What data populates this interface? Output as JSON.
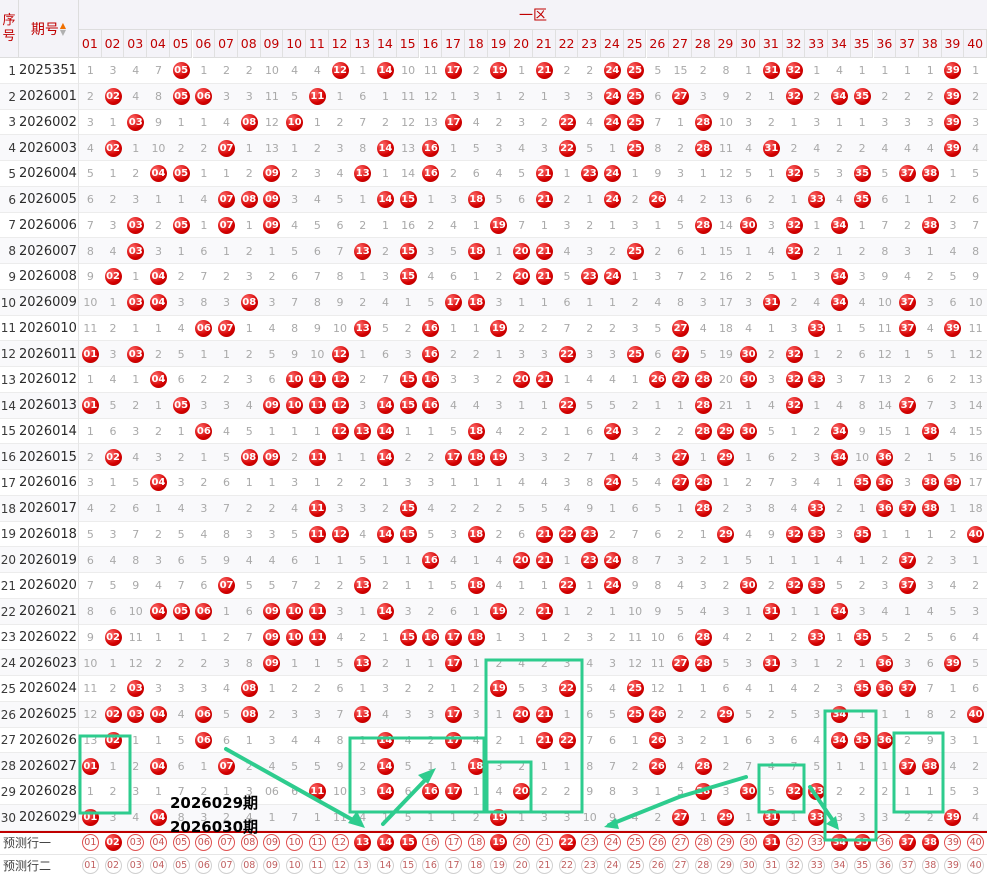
{
  "header": {
    "seq_label": "序号",
    "period_label": "期号",
    "zone_label": "一区",
    "sort_icon": "sort-arrows-icon"
  },
  "columns": [
    "01",
    "02",
    "03",
    "04",
    "05",
    "06",
    "07",
    "08",
    "09",
    "10",
    "11",
    "12",
    "13",
    "14",
    "15",
    "16",
    "17",
    "18",
    "19",
    "20",
    "21",
    "22",
    "23",
    "24",
    "25",
    "26",
    "27",
    "28",
    "29",
    "30",
    "31",
    "32",
    "33",
    "34",
    "35",
    "36",
    "37",
    "38",
    "39",
    "40"
  ],
  "rows": [
    {
      "i": "1",
      "p": "2025351",
      "v": [
        "1",
        "3",
        "4",
        "7",
        "05",
        "1",
        "2",
        "2",
        "10",
        "4",
        "4",
        "12",
        "1",
        "14",
        "10",
        "11",
        "17",
        "2",
        "19",
        "1",
        "21",
        "2",
        "2",
        "24",
        "25",
        "5",
        "15",
        "2",
        "8",
        "1",
        "31",
        "32",
        "1",
        "4",
        "1",
        "1",
        "1",
        "1",
        "39",
        "1"
      ]
    },
    {
      "i": "2",
      "p": "2026001",
      "v": [
        "2",
        "02",
        "4",
        "8",
        "05",
        "06",
        "3",
        "3",
        "11",
        "5",
        "11",
        "1",
        "6",
        "1",
        "11",
        "12",
        "1",
        "3",
        "1",
        "2",
        "1",
        "3",
        "3",
        "24",
        "25",
        "6",
        "27",
        "3",
        "9",
        "2",
        "1",
        "32",
        "2",
        "34",
        "35",
        "2",
        "2",
        "2",
        "39",
        "2"
      ]
    },
    {
      "i": "3",
      "p": "2026002",
      "v": [
        "3",
        "1",
        "03",
        "9",
        "1",
        "1",
        "4",
        "08",
        "12",
        "10",
        "1",
        "2",
        "7",
        "2",
        "12",
        "13",
        "17",
        "4",
        "2",
        "3",
        "2",
        "22",
        "4",
        "24",
        "25",
        "7",
        "1",
        "28",
        "10",
        "3",
        "2",
        "1",
        "3",
        "1",
        "1",
        "3",
        "3",
        "3",
        "39",
        "3"
      ]
    },
    {
      "i": "4",
      "p": "2026003",
      "v": [
        "4",
        "02",
        "1",
        "10",
        "2",
        "2",
        "07",
        "1",
        "13",
        "1",
        "2",
        "3",
        "8",
        "14",
        "13",
        "16",
        "1",
        "5",
        "3",
        "4",
        "3",
        "22",
        "5",
        "1",
        "25",
        "8",
        "2",
        "28",
        "11",
        "4",
        "31",
        "2",
        "4",
        "2",
        "2",
        "4",
        "4",
        "4",
        "39",
        "4"
      ]
    },
    {
      "i": "5",
      "p": "2026004",
      "v": [
        "5",
        "1",
        "2",
        "04",
        "05",
        "1",
        "1",
        "2",
        "09",
        "2",
        "3",
        "4",
        "13",
        "1",
        "14",
        "16",
        "2",
        "6",
        "4",
        "5",
        "21",
        "1",
        "23",
        "24",
        "1",
        "9",
        "3",
        "1",
        "12",
        "5",
        "1",
        "32",
        "5",
        "3",
        "35",
        "5",
        "37",
        "38",
        "1",
        "5"
      ]
    },
    {
      "i": "6",
      "p": "2026005",
      "v": [
        "6",
        "2",
        "3",
        "1",
        "1",
        "4",
        "07",
        "08",
        "09",
        "3",
        "4",
        "5",
        "1",
        "14",
        "15",
        "1",
        "3",
        "18",
        "5",
        "6",
        "21",
        "2",
        "1",
        "24",
        "2",
        "26",
        "4",
        "2",
        "13",
        "6",
        "2",
        "1",
        "33",
        "4",
        "35",
        "6",
        "1",
        "1",
        "2",
        "6"
      ]
    },
    {
      "i": "7",
      "p": "2026006",
      "v": [
        "7",
        "3",
        "03",
        "2",
        "05",
        "1",
        "07",
        "1",
        "09",
        "4",
        "5",
        "6",
        "2",
        "1",
        "16",
        "2",
        "4",
        "1",
        "19",
        "7",
        "1",
        "3",
        "2",
        "1",
        "3",
        "1",
        "5",
        "28",
        "14",
        "30",
        "3",
        "32",
        "1",
        "34",
        "1",
        "7",
        "2",
        "38",
        "3",
        "7"
      ]
    },
    {
      "i": "8",
      "p": "2026007",
      "v": [
        "8",
        "4",
        "03",
        "3",
        "1",
        "6",
        "1",
        "2",
        "1",
        "5",
        "6",
        "7",
        "13",
        "2",
        "15",
        "3",
        "5",
        "18",
        "1",
        "20",
        "21",
        "4",
        "3",
        "2",
        "25",
        "2",
        "6",
        "1",
        "15",
        "1",
        "4",
        "32",
        "2",
        "1",
        "2",
        "8",
        "3",
        "1",
        "4",
        "8"
      ]
    },
    {
      "i": "9",
      "p": "2026008",
      "v": [
        "9",
        "02",
        "1",
        "04",
        "2",
        "7",
        "2",
        "3",
        "2",
        "6",
        "7",
        "8",
        "1",
        "3",
        "15",
        "4",
        "6",
        "1",
        "2",
        "20",
        "21",
        "5",
        "23",
        "24",
        "1",
        "3",
        "7",
        "2",
        "16",
        "2",
        "5",
        "1",
        "3",
        "34",
        "3",
        "9",
        "4",
        "2",
        "5",
        "9"
      ]
    },
    {
      "i": "10",
      "p": "2026009",
      "v": [
        "10",
        "1",
        "03",
        "04",
        "3",
        "8",
        "3",
        "08",
        "3",
        "7",
        "8",
        "9",
        "2",
        "4",
        "1",
        "5",
        "17",
        "18",
        "3",
        "1",
        "1",
        "6",
        "1",
        "1",
        "2",
        "4",
        "8",
        "3",
        "17",
        "3",
        "31",
        "2",
        "4",
        "34",
        "4",
        "10",
        "37",
        "3",
        "6",
        "10"
      ]
    },
    {
      "i": "11",
      "p": "2026010",
      "v": [
        "11",
        "2",
        "1",
        "1",
        "4",
        "06",
        "07",
        "1",
        "4",
        "8",
        "9",
        "10",
        "13",
        "5",
        "2",
        "16",
        "1",
        "1",
        "19",
        "2",
        "2",
        "7",
        "2",
        "2",
        "3",
        "5",
        "27",
        "4",
        "18",
        "4",
        "1",
        "3",
        "33",
        "1",
        "5",
        "11",
        "37",
        "4",
        "39",
        "11"
      ]
    },
    {
      "i": "12",
      "p": "2026011",
      "v": [
        "01",
        "3",
        "03",
        "2",
        "5",
        "1",
        "1",
        "2",
        "5",
        "9",
        "10",
        "12",
        "1",
        "6",
        "3",
        "16",
        "2",
        "2",
        "1",
        "3",
        "3",
        "22",
        "3",
        "3",
        "25",
        "6",
        "27",
        "5",
        "19",
        "30",
        "2",
        "32",
        "1",
        "2",
        "6",
        "12",
        "1",
        "5",
        "1",
        "12"
      ]
    },
    {
      "i": "13",
      "p": "2026012",
      "v": [
        "1",
        "4",
        "1",
        "04",
        "6",
        "2",
        "2",
        "3",
        "6",
        "10",
        "11",
        "12",
        "2",
        "7",
        "15",
        "16",
        "3",
        "3",
        "2",
        "20",
        "21",
        "1",
        "4",
        "4",
        "1",
        "26",
        "27",
        "28",
        "20",
        "30",
        "3",
        "32",
        "33",
        "3",
        "7",
        "13",
        "2",
        "6",
        "2",
        "13"
      ]
    },
    {
      "i": "14",
      "p": "2026013",
      "v": [
        "01",
        "5",
        "2",
        "1",
        "05",
        "3",
        "3",
        "4",
        "09",
        "10",
        "11",
        "12",
        "3",
        "14",
        "15",
        "16",
        "4",
        "4",
        "3",
        "1",
        "1",
        "22",
        "5",
        "5",
        "2",
        "1",
        "1",
        "28",
        "21",
        "1",
        "4",
        "32",
        "1",
        "4",
        "8",
        "14",
        "37",
        "7",
        "3",
        "14"
      ]
    },
    {
      "i": "15",
      "p": "2026014",
      "v": [
        "1",
        "6",
        "3",
        "2",
        "1",
        "06",
        "4",
        "5",
        "1",
        "1",
        "1",
        "12",
        "13",
        "14",
        "1",
        "1",
        "5",
        "18",
        "4",
        "2",
        "2",
        "1",
        "6",
        "24",
        "3",
        "2",
        "2",
        "28",
        "29",
        "30",
        "5",
        "1",
        "2",
        "34",
        "9",
        "15",
        "1",
        "38",
        "4",
        "15"
      ]
    },
    {
      "i": "16",
      "p": "2026015",
      "v": [
        "2",
        "02",
        "4",
        "3",
        "2",
        "1",
        "5",
        "08",
        "09",
        "2",
        "11",
        "1",
        "1",
        "14",
        "2",
        "2",
        "17",
        "18",
        "19",
        "3",
        "3",
        "2",
        "7",
        "1",
        "4",
        "3",
        "27",
        "1",
        "29",
        "1",
        "6",
        "2",
        "3",
        "34",
        "10",
        "36",
        "2",
        "1",
        "5",
        "16"
      ]
    },
    {
      "i": "17",
      "p": "2026016",
      "v": [
        "3",
        "1",
        "5",
        "04",
        "3",
        "2",
        "6",
        "1",
        "1",
        "3",
        "1",
        "2",
        "2",
        "1",
        "3",
        "3",
        "1",
        "1",
        "1",
        "4",
        "4",
        "3",
        "8",
        "24",
        "5",
        "4",
        "27",
        "28",
        "1",
        "2",
        "7",
        "3",
        "4",
        "1",
        "35",
        "36",
        "3",
        "38",
        "39",
        "17"
      ]
    },
    {
      "i": "18",
      "p": "2026017",
      "v": [
        "4",
        "2",
        "6",
        "1",
        "4",
        "3",
        "7",
        "2",
        "2",
        "4",
        "11",
        "3",
        "3",
        "2",
        "15",
        "4",
        "2",
        "2",
        "2",
        "5",
        "5",
        "4",
        "9",
        "1",
        "6",
        "5",
        "1",
        "28",
        "2",
        "3",
        "8",
        "4",
        "33",
        "2",
        "1",
        "36",
        "37",
        "38",
        "1",
        "18"
      ]
    },
    {
      "i": "19",
      "p": "2026018",
      "v": [
        "5",
        "3",
        "7",
        "2",
        "5",
        "4",
        "8",
        "3",
        "3",
        "5",
        "11",
        "12",
        "4",
        "14",
        "15",
        "5",
        "3",
        "18",
        "2",
        "6",
        "21",
        "22",
        "23",
        "2",
        "7",
        "6",
        "2",
        "1",
        "29",
        "4",
        "9",
        "32",
        "33",
        "3",
        "35",
        "1",
        "1",
        "1",
        "2",
        "40"
      ]
    },
    {
      "i": "20",
      "p": "2026019",
      "v": [
        "6",
        "4",
        "8",
        "3",
        "6",
        "5",
        "9",
        "4",
        "4",
        "6",
        "1",
        "1",
        "5",
        "1",
        "1",
        "16",
        "4",
        "1",
        "4",
        "20",
        "21",
        "1",
        "23",
        "24",
        "8",
        "7",
        "3",
        "2",
        "1",
        "5",
        "1",
        "1",
        "1",
        "4",
        "1",
        "2",
        "37",
        "2",
        "3",
        "1"
      ]
    },
    {
      "i": "21",
      "p": "2026020",
      "v": [
        "7",
        "5",
        "9",
        "4",
        "7",
        "6",
        "07",
        "5",
        "5",
        "7",
        "2",
        "2",
        "13",
        "2",
        "1",
        "1",
        "5",
        "18",
        "4",
        "1",
        "1",
        "22",
        "1",
        "24",
        "9",
        "8",
        "4",
        "3",
        "2",
        "30",
        "2",
        "32",
        "33",
        "5",
        "2",
        "3",
        "37",
        "3",
        "4",
        "2"
      ]
    },
    {
      "i": "22",
      "p": "2026021",
      "v": [
        "8",
        "6",
        "10",
        "04",
        "05",
        "06",
        "1",
        "6",
        "09",
        "10",
        "11",
        "3",
        "1",
        "14",
        "3",
        "2",
        "6",
        "1",
        "19",
        "2",
        "21",
        "1",
        "2",
        "1",
        "10",
        "9",
        "5",
        "4",
        "3",
        "1",
        "31",
        "1",
        "1",
        "34",
        "3",
        "4",
        "1",
        "4",
        "5",
        "3"
      ]
    },
    {
      "i": "23",
      "p": "2026022",
      "v": [
        "9",
        "02",
        "11",
        "1",
        "1",
        "1",
        "2",
        "7",
        "09",
        "10",
        "11",
        "4",
        "2",
        "1",
        "15",
        "16",
        "17",
        "18",
        "1",
        "3",
        "1",
        "2",
        "3",
        "2",
        "11",
        "10",
        "6",
        "28",
        "4",
        "2",
        "1",
        "2",
        "33",
        "1",
        "35",
        "5",
        "2",
        "5",
        "6",
        "4"
      ]
    },
    {
      "i": "24",
      "p": "2026023",
      "v": [
        "10",
        "1",
        "12",
        "2",
        "2",
        "2",
        "3",
        "8",
        "09",
        "1",
        "1",
        "5",
        "13",
        "2",
        "1",
        "1",
        "17",
        "1",
        "2",
        "4",
        "2",
        "3",
        "4",
        "3",
        "12",
        "11",
        "27",
        "28",
        "5",
        "3",
        "31",
        "3",
        "1",
        "2",
        "1",
        "36",
        "3",
        "6",
        "39",
        "5"
      ]
    },
    {
      "i": "25",
      "p": "2026024",
      "v": [
        "11",
        "2",
        "03",
        "3",
        "3",
        "3",
        "4",
        "08",
        "1",
        "2",
        "2",
        "6",
        "1",
        "3",
        "2",
        "2",
        "1",
        "2",
        "19",
        "5",
        "3",
        "22",
        "5",
        "4",
        "25",
        "12",
        "1",
        "1",
        "6",
        "4",
        "1",
        "4",
        "2",
        "3",
        "35",
        "36",
        "37",
        "7",
        "1",
        "6"
      ]
    },
    {
      "i": "26",
      "p": "2026025",
      "v": [
        "12",
        "02",
        "03",
        "04",
        "4",
        "06",
        "5",
        "08",
        "2",
        "3",
        "3",
        "7",
        "13",
        "4",
        "3",
        "3",
        "17",
        "3",
        "1",
        "20",
        "21",
        "1",
        "6",
        "5",
        "25",
        "26",
        "2",
        "2",
        "29",
        "5",
        "2",
        "5",
        "3",
        "34",
        "1",
        "1",
        "1",
        "8",
        "2",
        "40"
      ]
    },
    {
      "i": "27",
      "p": "2026026",
      "v": [
        "13",
        "02",
        "1",
        "1",
        "5",
        "06",
        "6",
        "1",
        "3",
        "4",
        "4",
        "8",
        "1",
        "14",
        "4",
        "2",
        "17",
        "4",
        "2",
        "1",
        "21",
        "22",
        "7",
        "6",
        "1",
        "26",
        "3",
        "2",
        "1",
        "6",
        "3",
        "6",
        "4",
        "34",
        "35",
        "36",
        "2",
        "9",
        "3",
        "1"
      ]
    },
    {
      "i": "28",
      "p": "2026027",
      "v": [
        "01",
        "1",
        "2",
        "04",
        "6",
        "1",
        "07",
        "2",
        "4",
        "5",
        "5",
        "9",
        "2",
        "14",
        "5",
        "1",
        "1",
        "18",
        "3",
        "2",
        "1",
        "1",
        "8",
        "7",
        "2",
        "26",
        "4",
        "28",
        "2",
        "7",
        "4",
        "7",
        "5",
        "1",
        "1",
        "1",
        "37",
        "38",
        "4",
        "2"
      ]
    },
    {
      "i": "29",
      "p": "2026028",
      "v": [
        "1",
        "2",
        "3",
        "1",
        "7",
        "2",
        "1",
        "3",
        "06",
        "6",
        "11",
        "10",
        "3",
        "14",
        "6",
        "16",
        "17",
        "1",
        "4",
        "20",
        "2",
        "2",
        "9",
        "8",
        "3",
        "1",
        "5",
        "28",
        "3",
        "30",
        "5",
        "32",
        "33",
        "2",
        "2",
        "2",
        "1",
        "1",
        "5",
        "3"
      ]
    },
    {
      "i": "30",
      "p": "2026029",
      "v": [
        "01",
        "3",
        "4",
        "04",
        "8",
        "3",
        "2",
        "4",
        "1",
        "7",
        "1",
        "11",
        "4",
        "1",
        "5",
        "1",
        "1",
        "2",
        "19",
        "1",
        "3",
        "3",
        "10",
        "9",
        "4",
        "2",
        "27",
        "1",
        "29",
        "1",
        "31",
        "1",
        "33",
        "3",
        "3",
        "3",
        "2",
        "2",
        "39",
        "4"
      ]
    }
  ],
  "predict": [
    {
      "label": "预测行一",
      "filled": [
        "02",
        "13",
        "14",
        "15",
        "19",
        "22",
        "31",
        "34",
        "35",
        "37",
        "38"
      ]
    },
    {
      "label": "预测行二",
      "filled": []
    }
  ],
  "overlays": {
    "line1": "2026029期",
    "line2": "2026030期"
  },
  "colors": {
    "ball": "#d40000",
    "bar": "#8c8fd0",
    "box": "#2ecc8e",
    "header_bg": "#f4f3f8",
    "header_text": "#c00000"
  }
}
